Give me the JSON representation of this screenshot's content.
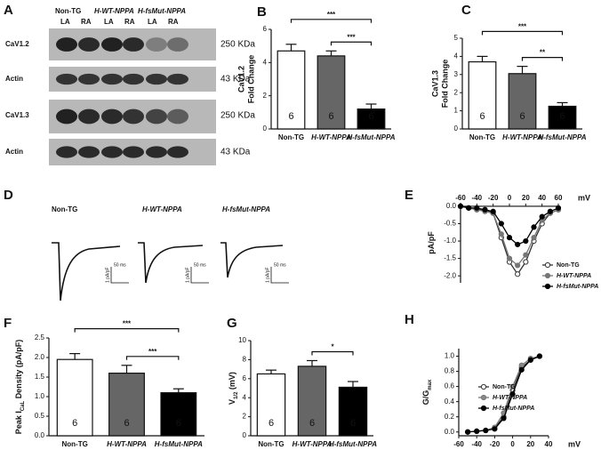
{
  "blot": {
    "panel": "A",
    "groups": [
      "Non-TG",
      "H-WT-NPPA",
      "H-fsMut-NPPA"
    ],
    "lanes": [
      "LA",
      "RA",
      "LA",
      "RA",
      "LA",
      "RA"
    ],
    "rows": [
      {
        "label": "CaV1.2",
        "size": "250 KDa"
      },
      {
        "label": "Actin",
        "size": "43 KDa"
      },
      {
        "label": "CaV1.3",
        "size": "250 KDa"
      },
      {
        "label": "Actin",
        "size": "43 KDa"
      }
    ]
  },
  "traces": {
    "panel": "D",
    "groups": [
      "Non-TG",
      "H-WT-NPPA",
      "H-fsMut-NPPA"
    ],
    "time_scale": "50 ms",
    "current_scale": "1 pA/pF"
  },
  "chart_data": [
    {
      "type": "bar",
      "panel": "B",
      "ylabel": [
        "CaV1.2",
        "Fold Change"
      ],
      "categories": [
        "Non-TG",
        "H-WT-NPPA",
        "H-fsMut-NPPA"
      ],
      "values": [
        4.7,
        4.4,
        1.2
      ],
      "errors": [
        0.4,
        0.3,
        0.3
      ],
      "colors": [
        "#ffffff",
        "#666666",
        "#000000"
      ],
      "n_labels": [
        "6",
        "6",
        "6"
      ],
      "ylim": [
        0,
        6
      ],
      "yticks": [
        0,
        2,
        4,
        6
      ],
      "significance": [
        {
          "label": "***",
          "between": [
            "Non-TG",
            "H-fsMut-NPPA"
          ]
        },
        {
          "label": "***",
          "between": [
            "H-WT-NPPA",
            "H-fsMut-NPPA"
          ]
        }
      ]
    },
    {
      "type": "bar",
      "panel": "C",
      "ylabel": [
        "CaV1.3",
        "Fold Change"
      ],
      "categories": [
        "Non-TG",
        "H-WT-NPPA",
        "H-fsMut-NPPA"
      ],
      "values": [
        3.7,
        3.05,
        1.25
      ],
      "errors": [
        0.3,
        0.4,
        0.2
      ],
      "colors": [
        "#ffffff",
        "#666666",
        "#000000"
      ],
      "n_labels": [
        "6",
        "6",
        "6"
      ],
      "ylim": [
        0,
        5
      ],
      "yticks": [
        0,
        1,
        2,
        3,
        4,
        5
      ],
      "significance": [
        {
          "label": "***",
          "between": [
            "Non-TG",
            "H-fsMut-NPPA"
          ]
        },
        {
          "label": "**",
          "between": [
            "H-WT-NPPA",
            "H-fsMut-NPPA"
          ]
        }
      ]
    },
    {
      "type": "line",
      "panel": "E",
      "xlabel": "mV",
      "ylabel": "pA/pF",
      "x": [
        -60,
        -50,
        -40,
        -30,
        -20,
        -10,
        0,
        10,
        20,
        30,
        40,
        50,
        60
      ],
      "series": [
        {
          "name": "Non-TG",
          "color": "#333333",
          "fill": "#ffffff",
          "values": [
            0,
            -0.05,
            -0.1,
            -0.1,
            -0.2,
            -0.9,
            -1.6,
            -1.95,
            -1.6,
            -1.0,
            -0.5,
            -0.2,
            -0.1
          ]
        },
        {
          "name": "H-WT-NPPA",
          "color": "#777777",
          "fill": "#777777",
          "values": [
            0,
            -0.05,
            -0.1,
            -0.15,
            -0.2,
            -0.8,
            -1.5,
            -1.7,
            -1.4,
            -0.9,
            -0.4,
            -0.2,
            -0.1
          ]
        },
        {
          "name": "H-fsMut-NPPA",
          "color": "#000000",
          "fill": "#000000",
          "values": [
            0,
            -0.05,
            -0.05,
            -0.1,
            -0.15,
            -0.5,
            -0.9,
            -1.1,
            -1.0,
            -0.6,
            -0.3,
            -0.15,
            -0.05
          ]
        }
      ],
      "xlim": [
        -60,
        60
      ],
      "ylim": [
        -2.2,
        0.1
      ],
      "xticks": [
        -60,
        -40,
        -20,
        0,
        20,
        40,
        60
      ],
      "yticks": [
        {
          "value": 0,
          "label": "0.0"
        },
        -0.5,
        {
          "value": -1,
          "label": "-1.0"
        },
        -1.5,
        {
          "value": -2,
          "label": "-2.0"
        }
      ],
      "x_axis": "top",
      "legend": "lower right"
    },
    {
      "type": "bar",
      "panel": "F",
      "ylabel": "Peak I",
      "ylabel_sub": "CaL",
      "ylabel_tail": " Density (pA/pF)",
      "categories": [
        "Non-TG",
        "H-WT-NPPA",
        "H-fsMut-NPPA"
      ],
      "values": [
        1.95,
        1.6,
        1.1
      ],
      "errors": [
        0.15,
        0.2,
        0.1
      ],
      "colors": [
        "#ffffff",
        "#666666",
        "#000000"
      ],
      "n_labels": [
        "6",
        "6",
        "6"
      ],
      "ylim": [
        0,
        2.5
      ],
      "yticks": [
        {
          "value": 0,
          "label": "0.0"
        },
        0.5,
        {
          "value": 1,
          "label": "1.0"
        },
        1.5,
        {
          "value": 2,
          "label": "2.0"
        },
        2.5
      ],
      "significance": [
        {
          "label": "***",
          "between": [
            "Non-TG",
            "H-fsMut-NPPA"
          ]
        },
        {
          "label": "***",
          "between": [
            "H-WT-NPPA",
            "H-fsMut-NPPA"
          ]
        }
      ]
    },
    {
      "type": "bar",
      "panel": "G",
      "ylabel": "V",
      "ylabel_sub": "1/2",
      "ylabel_tail": " (mV)",
      "categories": [
        "Non-TG",
        "H-WT-NPPA",
        "H-fsMut-NPPA"
      ],
      "values": [
        6.5,
        7.3,
        5.1
      ],
      "errors": [
        0.4,
        0.6,
        0.6
      ],
      "colors": [
        "#ffffff",
        "#666666",
        "#000000"
      ],
      "n_labels": [
        "6",
        "6",
        "6"
      ],
      "ylim": [
        0,
        10
      ],
      "yticks": [
        0,
        2,
        4,
        6,
        8,
        10
      ],
      "significance": [
        {
          "label": "*",
          "between": [
            "H-WT-NPPA",
            "H-fsMut-NPPA"
          ]
        }
      ]
    },
    {
      "type": "line",
      "panel": "H",
      "xlabel": "mV",
      "ylabel": "G/G",
      "ylabel_sub": "max",
      "x": [
        -50,
        -40,
        -30,
        -20,
        -10,
        0,
        10,
        20,
        30
      ],
      "series": [
        {
          "name": "Non-TG",
          "color": "#333333",
          "fill": "#ffffff",
          "values": [
            0,
            0.01,
            0.02,
            0.05,
            0.2,
            0.55,
            0.85,
            0.95,
            1.0
          ]
        },
        {
          "name": "H-WT-NPPA",
          "color": "#777777",
          "fill": "#888888",
          "values": [
            0,
            0.01,
            0.02,
            0.06,
            0.25,
            0.6,
            0.88,
            0.97,
            1.0
          ]
        },
        {
          "name": "H-fsMut-NPPA",
          "color": "#000000",
          "fill": "#000000",
          "values": [
            0,
            0.01,
            0.02,
            0.04,
            0.18,
            0.5,
            0.82,
            0.95,
            1.0
          ]
        }
      ],
      "xlim": [
        -60,
        40
      ],
      "ylim": [
        -0.05,
        1.1
      ],
      "xticks": [
        -60,
        -40,
        -20,
        0,
        20,
        40
      ],
      "yticks": [
        {
          "value": 0,
          "label": "0.0"
        },
        0.2,
        0.4,
        0.6,
        0.8,
        {
          "value": 1,
          "label": "1.0"
        }
      ],
      "x_axis": "bottom",
      "legend": "center"
    }
  ]
}
